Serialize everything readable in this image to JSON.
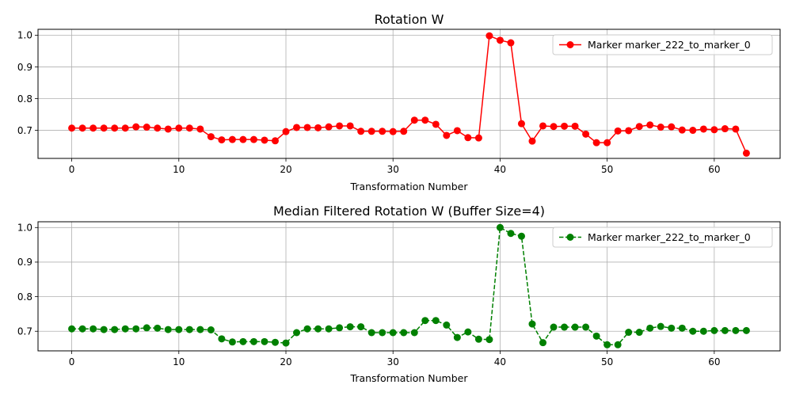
{
  "chart_data": [
    {
      "type": "line",
      "title": "Rotation W",
      "xlabel": "Transformation Number",
      "ylabel": "",
      "xlim": [
        -3.15,
        66.15
      ],
      "ylim": [
        0.6115,
        1.0185
      ],
      "xticks": [
        0,
        10,
        20,
        30,
        40,
        50,
        60
      ],
      "yticks": [
        0.7,
        0.8,
        0.9,
        1.0
      ],
      "ytick_labels": [
        "0.7",
        "0.8",
        "0.9",
        "1.0"
      ],
      "grid": true,
      "legend_position": "top-right",
      "series": [
        {
          "name": "Marker marker_222_to_marker_0",
          "color": "#ff0000",
          "line_style": "solid",
          "marker": "circle",
          "x": [
            0,
            1,
            2,
            3,
            4,
            5,
            6,
            7,
            8,
            9,
            10,
            11,
            12,
            13,
            14,
            15,
            16,
            17,
            18,
            19,
            20,
            21,
            22,
            23,
            24,
            25,
            26,
            27,
            28,
            29,
            30,
            31,
            32,
            33,
            34,
            35,
            36,
            37,
            38,
            39,
            40,
            41,
            42,
            43,
            44,
            45,
            46,
            47,
            48,
            49,
            50,
            51,
            52,
            53,
            54,
            55,
            56,
            57,
            58,
            59,
            60,
            61,
            62,
            63
          ],
          "values": [
            0.707,
            0.707,
            0.707,
            0.707,
            0.707,
            0.707,
            0.711,
            0.71,
            0.707,
            0.704,
            0.707,
            0.707,
            0.704,
            0.68,
            0.67,
            0.671,
            0.671,
            0.671,
            0.669,
            0.667,
            0.696,
            0.709,
            0.709,
            0.708,
            0.711,
            0.714,
            0.714,
            0.697,
            0.697,
            0.697,
            0.696,
            0.697,
            0.732,
            0.732,
            0.719,
            0.684,
            0.699,
            0.677,
            0.676,
            0.998,
            0.984,
            0.976,
            0.721,
            0.666,
            0.714,
            0.712,
            0.713,
            0.713,
            0.688,
            0.661,
            0.661,
            0.698,
            0.699,
            0.712,
            0.717,
            0.71,
            0.711,
            0.701,
            0.7,
            0.704,
            0.702,
            0.705,
            0.704,
            0.628
          ]
        }
      ]
    },
    {
      "type": "line",
      "title": "Median Filtered Rotation W (Buffer Size=4)",
      "xlabel": "Transformation Number",
      "ylabel": "",
      "xlim": [
        -3.15,
        66.15
      ],
      "ylim": [
        0.6433,
        1.0167
      ],
      "xticks": [
        0,
        10,
        20,
        30,
        40,
        50,
        60
      ],
      "yticks": [
        0.7,
        0.8,
        0.9,
        1.0
      ],
      "ytick_labels": [
        "0.7",
        "0.8",
        "0.9",
        "1.0"
      ],
      "grid": true,
      "legend_position": "top-right",
      "series": [
        {
          "name": "Marker marker_222_to_marker_0",
          "color": "#008000",
          "line_style": "dashed",
          "marker": "circle",
          "x": [
            0,
            1,
            2,
            3,
            4,
            5,
            6,
            7,
            8,
            9,
            10,
            11,
            12,
            13,
            14,
            15,
            16,
            17,
            18,
            19,
            20,
            21,
            22,
            23,
            24,
            25,
            26,
            27,
            28,
            29,
            30,
            31,
            32,
            33,
            34,
            35,
            36,
            37,
            38,
            39,
            40,
            41,
            42,
            43,
            44,
            45,
            46,
            47,
            48,
            49,
            50,
            51,
            52,
            53,
            54,
            55,
            56,
            57,
            58,
            59,
            60,
            61,
            62,
            63
          ],
          "values": [
            0.707,
            0.707,
            0.707,
            0.705,
            0.705,
            0.707,
            0.707,
            0.71,
            0.709,
            0.705,
            0.705,
            0.705,
            0.705,
            0.704,
            0.678,
            0.669,
            0.67,
            0.67,
            0.67,
            0.668,
            0.666,
            0.696,
            0.707,
            0.707,
            0.707,
            0.71,
            0.713,
            0.713,
            0.696,
            0.696,
            0.696,
            0.696,
            0.696,
            0.731,
            0.731,
            0.718,
            0.682,
            0.698,
            0.677,
            0.676,
            1.0,
            0.983,
            0.975,
            0.721,
            0.667,
            0.712,
            0.712,
            0.712,
            0.712,
            0.686,
            0.661,
            0.661,
            0.697,
            0.697,
            0.709,
            0.714,
            0.709,
            0.709,
            0.7,
            0.7,
            0.702,
            0.702,
            0.702,
            0.702
          ]
        }
      ]
    }
  ]
}
